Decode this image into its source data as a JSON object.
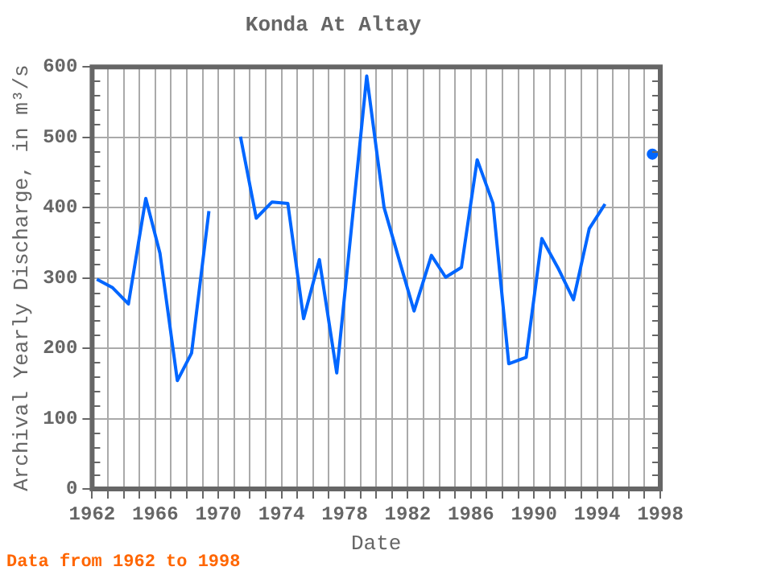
{
  "chart_data": {
    "type": "line",
    "title": "Konda At Altay",
    "xlabel": "Date",
    "ylabel": "Archival Yearly Discharge, in m³/s",
    "annotations": [
      "Data from 1962 to 1998"
    ],
    "x": [
      1962.3,
      1963.3,
      1964.3,
      1965.4,
      1966.3,
      1967.4,
      1968.3,
      1969.4,
      1970.4,
      1971.4,
      1972.4,
      1973.4,
      1974.4,
      1975.4,
      1976.4,
      1977.5,
      1978.4,
      1979.4,
      1980.5,
      1981.4,
      1982.4,
      1983.5,
      1984.4,
      1985.4,
      1986.4,
      1987.4,
      1988.4,
      1989.5,
      1990.5,
      1991.5,
      1992.5,
      1993.5,
      1994.5,
      1995.5,
      1996.5,
      1997.5
    ],
    "series": [
      {
        "color": "#0066ff",
        "values": [
          298,
          286,
          263,
          413,
          335,
          154,
          193,
          395,
          null,
          501,
          385,
          408,
          406,
          242,
          326,
          165,
          364,
          587,
          400,
          330,
          253,
          332,
          301,
          315,
          468,
          406,
          178,
          187,
          356,
          315,
          269,
          370,
          405,
          null,
          null,
          476
        ]
      }
    ],
    "xlim": [
      1962,
      1998
    ],
    "xticks": [
      1962,
      {
        "value": 1963,
        "label": null
      },
      {
        "value": 1964,
        "label": null
      },
      {
        "value": 1965,
        "label": null
      },
      1966,
      {
        "value": 1967,
        "label": null
      },
      {
        "value": 1968,
        "label": null
      },
      {
        "value": 1969,
        "label": null
      },
      1970,
      {
        "value": 1971,
        "label": null
      },
      {
        "value": 1972,
        "label": null
      },
      {
        "value": 1973,
        "label": null
      },
      1974,
      {
        "value": 1975,
        "label": null
      },
      {
        "value": 1976,
        "label": null
      },
      {
        "value": 1977,
        "label": null
      },
      1978,
      {
        "value": 1979,
        "label": null
      },
      {
        "value": 1980,
        "label": null
      },
      {
        "value": 1981,
        "label": null
      },
      1982,
      {
        "value": 1983,
        "label": null
      },
      {
        "value": 1984,
        "label": null
      },
      {
        "value": 1985,
        "label": null
      },
      1986,
      {
        "value": 1987,
        "label": null
      },
      {
        "value": 1988,
        "label": null
      },
      {
        "value": 1989,
        "label": null
      },
      1990,
      {
        "value": 1991,
        "label": null
      },
      {
        "value": 1992,
        "label": null
      },
      {
        "value": 1993,
        "label": null
      },
      1994,
      {
        "value": 1995,
        "label": null
      },
      {
        "value": 1996,
        "label": null
      },
      {
        "value": 1997,
        "label": null
      },
      1998
    ],
    "ylim": [
      0,
      600
    ],
    "yticks": [
      0,
      100,
      200,
      300,
      400,
      500,
      600
    ],
    "grid": true,
    "legend": false
  }
}
